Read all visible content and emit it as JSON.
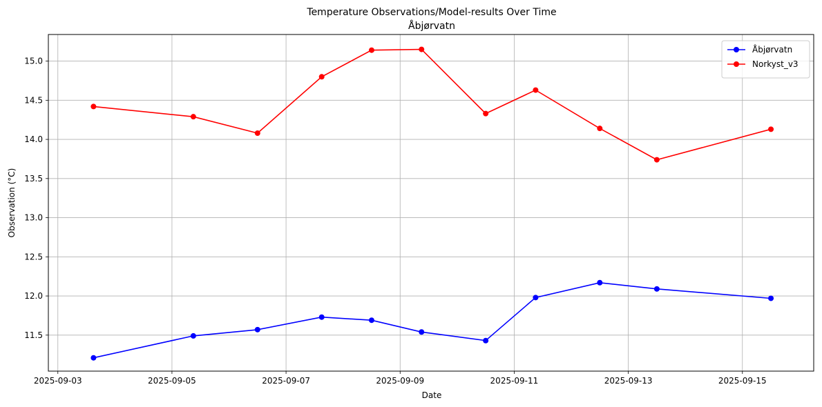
{
  "chart_data": {
    "type": "line",
    "title": "Temperature Observations/Model-results Over Time",
    "subtitle": "Åbjørvatn",
    "xlabel": "Date",
    "ylabel": "Observation (°C)",
    "x": [
      "2025-09-03 15:00",
      "2025-09-05 09:00",
      "2025-09-06 12:00",
      "2025-09-07 15:00",
      "2025-09-08 12:00",
      "2025-09-09 09:00",
      "2025-09-10 12:00",
      "2025-09-11 09:00",
      "2025-09-12 12:00",
      "2025-09-13 12:00",
      "2025-09-15 12:00"
    ],
    "x_ticks": [
      "2025-09-03",
      "2025-09-05",
      "2025-09-07",
      "2025-09-09",
      "2025-09-11",
      "2025-09-13",
      "2025-09-15"
    ],
    "y_ticks": [
      11.5,
      12.0,
      12.5,
      13.0,
      13.5,
      14.0,
      14.5,
      15.0
    ],
    "xlim": [
      "2025-09-02 20:00",
      "2025-09-16 06:00"
    ],
    "ylim": [
      11.04,
      15.34
    ],
    "grid": true,
    "legend_position": "top-right",
    "series": [
      {
        "name": "Åbjørvatn",
        "color": "#0000ff",
        "values": [
          11.21,
          11.49,
          11.57,
          11.73,
          11.69,
          11.54,
          11.43,
          11.98,
          12.17,
          12.09,
          11.97
        ]
      },
      {
        "name": "Norkyst_v3",
        "color": "#ff0000",
        "values": [
          14.42,
          14.29,
          14.08,
          14.8,
          15.14,
          15.15,
          14.33,
          14.63,
          14.14,
          13.74,
          14.13
        ]
      }
    ]
  }
}
